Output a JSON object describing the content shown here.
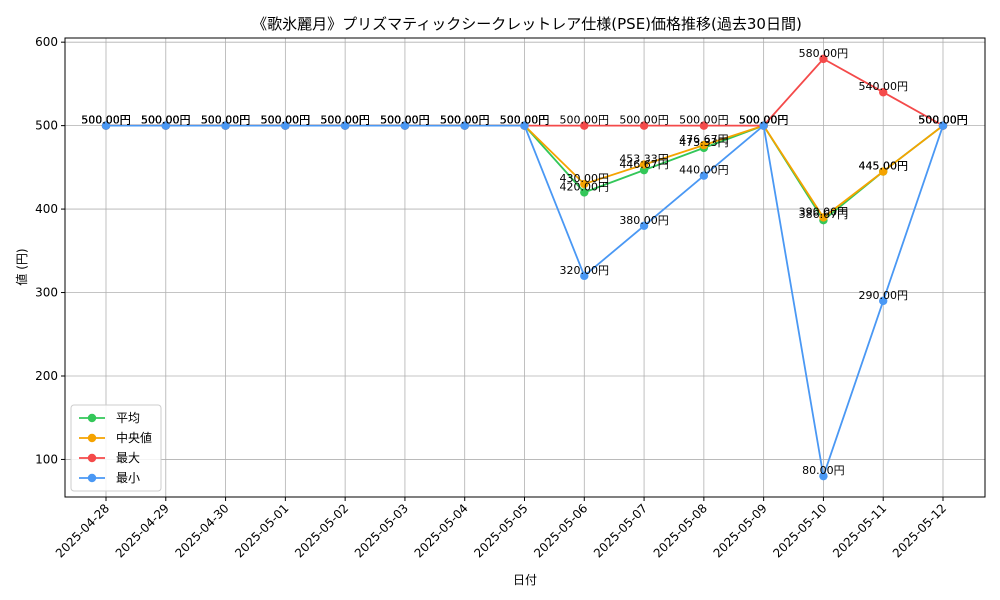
{
  "chart_data": {
    "type": "line",
    "title": "《歌氷麗月》プリズマティックシークレットレア仕様(PSE)価格推移(過去30日間)",
    "xlabel": "日付",
    "ylabel": "値 (円)",
    "ylim": [
      55,
      605
    ],
    "yticks": [
      100,
      200,
      300,
      400,
      500,
      600
    ],
    "grid": true,
    "legend_position": "lower-left",
    "categories": [
      "2025-04-28",
      "2025-04-29",
      "2025-04-30",
      "2025-05-01",
      "2025-05-02",
      "2025-05-03",
      "2025-05-04",
      "2025-05-05",
      "2025-05-06",
      "2025-05-07",
      "2025-05-08",
      "2025-05-09",
      "2025-05-10",
      "2025-05-11",
      "2025-05-12"
    ],
    "series": [
      {
        "name": "平均",
        "color": "#33c759",
        "values": [
          500,
          500,
          500,
          500,
          500,
          500,
          500,
          500,
          420,
          446.67,
          473.33,
          500,
          386.67,
          445,
          500
        ],
        "labels": [
          "500.00円",
          "500.00円",
          "500.00円",
          "500.00円",
          "500.00円",
          "500.00円",
          "500.00円",
          "500.00円",
          "420.00円",
          "446.67円",
          "473.33円",
          "500.00円",
          "386.67円",
          "445.00円",
          "500.00円"
        ]
      },
      {
        "name": "中央値",
        "color": "#f5a300",
        "values": [
          500,
          500,
          500,
          500,
          500,
          500,
          500,
          500,
          430,
          453.33,
          476.67,
          500,
          390,
          445,
          500
        ],
        "labels": [
          "500.00円",
          "500.00円",
          "500.00円",
          "500.00円",
          "500.00円",
          "500.00円",
          "500.00円",
          "500.00円",
          "430.00円",
          "453.33円",
          "476.67円",
          "500.00円",
          "390.00円",
          "445.00円",
          "500.00円"
        ]
      },
      {
        "name": "最大",
        "color": "#f44a4a",
        "values": [
          500,
          500,
          500,
          500,
          500,
          500,
          500,
          500,
          500,
          500,
          500,
          500,
          580,
          540,
          500
        ],
        "labels": [
          "500.00円",
          "500.00円",
          "500.00円",
          "500.00円",
          "500.00円",
          "500.00円",
          "500.00円",
          "500.00円",
          "500.00円",
          "500.00円",
          "500.00円",
          "500.00円",
          "580.00円",
          "540.00円",
          "500.00円"
        ]
      },
      {
        "name": "最小",
        "color": "#4a98f4",
        "values": [
          500,
          500,
          500,
          500,
          500,
          500,
          500,
          500,
          320,
          380,
          440,
          500,
          80,
          290,
          500
        ],
        "labels": [
          "500.00円",
          "500.00円",
          "500.00円",
          "500.00円",
          "500.00円",
          "500.00円",
          "500.00円",
          "500.00円",
          "320.00円",
          "380.00円",
          "440.00円",
          "500.00円",
          "80.00円",
          "290.00円",
          "500.00円"
        ]
      }
    ]
  }
}
